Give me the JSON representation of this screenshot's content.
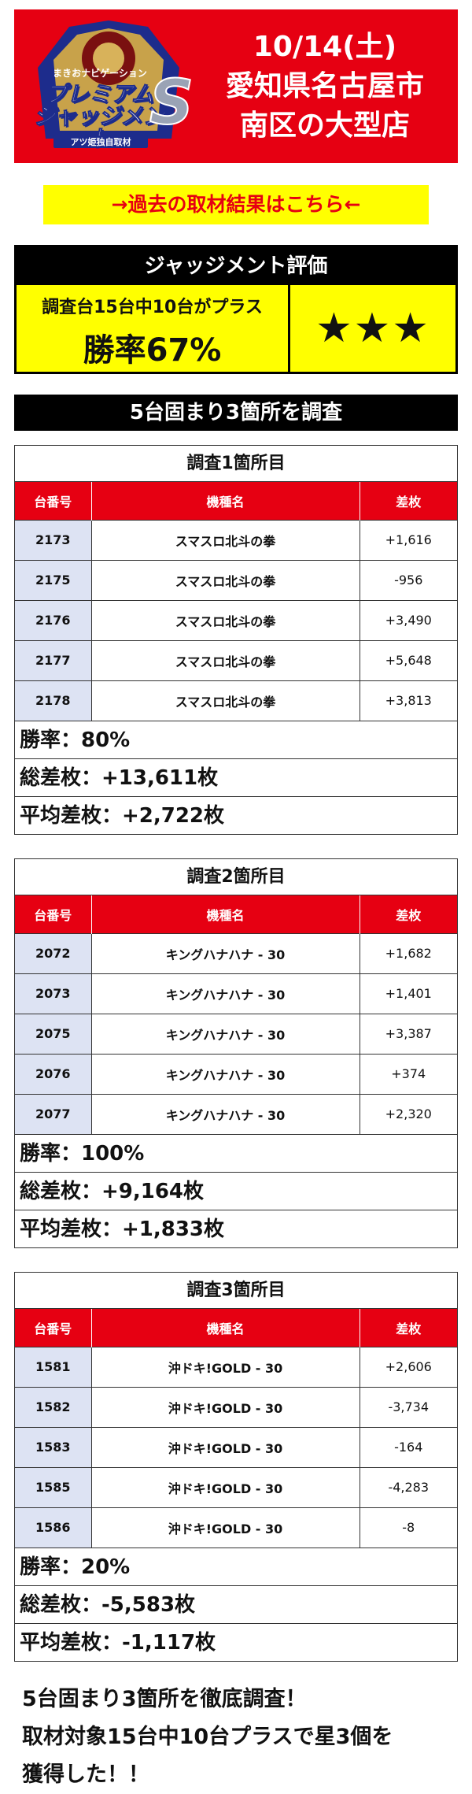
{
  "banner": {
    "logo_caption": "まきおナビゲーション",
    "logo_title_1": "プレミアム",
    "logo_title_2": "ジャッジメント",
    "logo_sub": "アツ姫独自取材",
    "logo_letter": "S",
    "date": "10/14(土)",
    "line1": "愛知県名古屋市",
    "line2": "南区の大型店"
  },
  "link": {
    "label": "→過去の取材結果はこちら←"
  },
  "judgement": {
    "header": "ジャッジメント評価",
    "desc": "調査台15台中10台がプラス",
    "rate": "勝率67%",
    "stars": "★★★"
  },
  "section_header": "5台固まり3箇所を調査",
  "table_headers": {
    "machine_no": "台番号",
    "machine_name": "機種名",
    "diff": "差枚"
  },
  "surveys": [
    {
      "title": "調査1箇所目",
      "rows": [
        {
          "no": "2173",
          "name": "スマスロ北斗の拳",
          "diff": "+1,616"
        },
        {
          "no": "2175",
          "name": "スマスロ北斗の拳",
          "diff": "-956"
        },
        {
          "no": "2176",
          "name": "スマスロ北斗の拳",
          "diff": "+3,490"
        },
        {
          "no": "2177",
          "name": "スマスロ北斗の拳",
          "diff": "+5,648"
        },
        {
          "no": "2178",
          "name": "スマスロ北斗の拳",
          "diff": "+3,813"
        }
      ],
      "win_rate": "勝率：80%",
      "total": "総差枚：+13,611枚",
      "average": "平均差枚：+2,722枚"
    },
    {
      "title": "調査2箇所目",
      "rows": [
        {
          "no": "2072",
          "name": "キングハナハナ - 30",
          "diff": "+1,682"
        },
        {
          "no": "2073",
          "name": "キングハナハナ - 30",
          "diff": "+1,401"
        },
        {
          "no": "2075",
          "name": "キングハナハナ - 30",
          "diff": "+3,387"
        },
        {
          "no": "2076",
          "name": "キングハナハナ - 30",
          "diff": "+374"
        },
        {
          "no": "2077",
          "name": "キングハナハナ - 30",
          "diff": "+2,320"
        }
      ],
      "win_rate": "勝率：100%",
      "total": "総差枚：+9,164枚",
      "average": "平均差枚：+1,833枚"
    },
    {
      "title": "調査3箇所目",
      "rows": [
        {
          "no": "1581",
          "name": "沖ドキ!GOLD - 30",
          "diff": "+2,606"
        },
        {
          "no": "1582",
          "name": "沖ドキ!GOLD - 30",
          "diff": "-3,734"
        },
        {
          "no": "1583",
          "name": "沖ドキ!GOLD - 30",
          "diff": "-164"
        },
        {
          "no": "1585",
          "name": "沖ドキ!GOLD - 30",
          "diff": "-4,283"
        },
        {
          "no": "1586",
          "name": "沖ドキ!GOLD - 30",
          "diff": "-8"
        }
      ],
      "win_rate": "勝率：20%",
      "total": "総差枚：-5,583枚",
      "average": "平均差枚：-1,117枚"
    }
  ],
  "summary": {
    "line1": "5台固まり3箇所を徹底調査！",
    "line2": "取材対象15台中10台プラスで星3個を",
    "line3": "獲得した！！"
  },
  "colors": {
    "red": "#e60012",
    "yellow": "#ffff00",
    "navy": "#1d2c8c",
    "cell_blue": "#dde3f3"
  }
}
